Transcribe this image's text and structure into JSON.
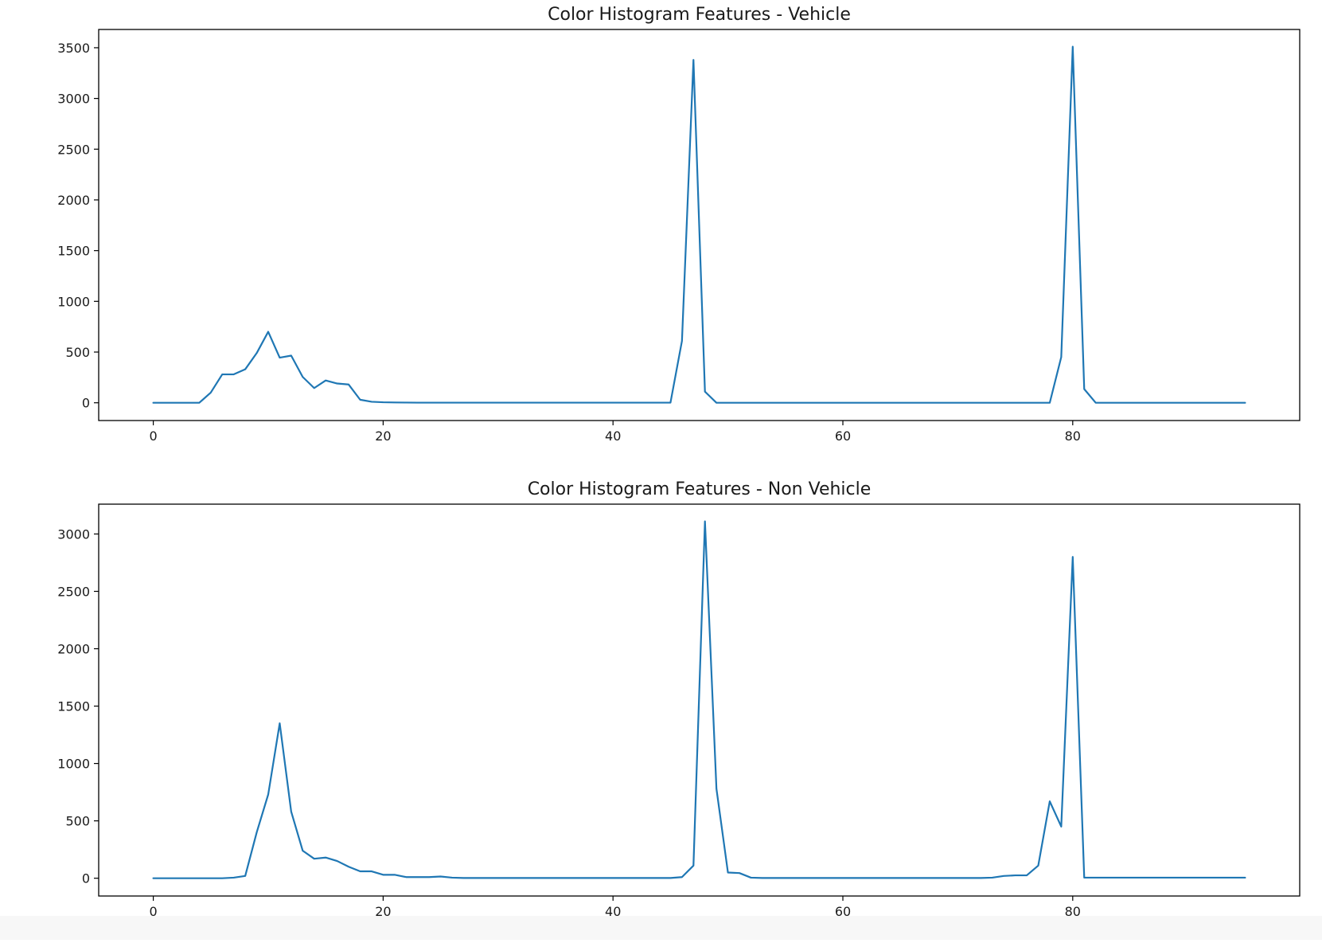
{
  "chart_data": [
    {
      "type": "line",
      "title": "Color Histogram Features - Vehicle",
      "xlabel": "",
      "ylabel": "",
      "xlim": [
        -4.75,
        99.75
      ],
      "ylim": [
        -175,
        3680
      ],
      "xticks": [
        0,
        20,
        40,
        60,
        80
      ],
      "yticks": [
        0,
        500,
        1000,
        1500,
        2000,
        2500,
        3000,
        3500
      ],
      "xtick_labels": [
        "0",
        "20",
        "40",
        "60",
        "80"
      ],
      "ytick_labels": [
        "0",
        "500",
        "1000",
        "1500",
        "2000",
        "2500",
        "3000",
        "3500"
      ],
      "grid": false,
      "line_color": "#1f77b4",
      "series": [
        {
          "x": [
            0,
            1,
            2,
            3,
            4,
            5,
            6,
            7,
            8,
            9,
            10,
            11,
            12,
            13,
            14,
            15,
            16,
            17,
            18,
            19,
            20,
            21,
            22,
            23,
            24,
            25,
            26,
            27,
            28,
            29,
            30,
            31,
            32,
            33,
            34,
            35,
            36,
            37,
            38,
            39,
            40,
            41,
            42,
            43,
            44,
            45,
            46,
            47,
            48,
            49,
            50,
            51,
            52,
            53,
            54,
            55,
            56,
            57,
            58,
            59,
            60,
            61,
            62,
            63,
            64,
            65,
            66,
            67,
            68,
            69,
            70,
            71,
            72,
            73,
            74,
            75,
            76,
            77,
            78,
            79,
            80,
            81,
            82,
            83,
            84,
            85,
            86,
            87,
            88,
            89,
            90,
            91,
            92,
            93,
            94,
            95
          ],
          "values": [
            0,
            0,
            0,
            0,
            0,
            100,
            280,
            280,
            330,
            490,
            700,
            445,
            465,
            255,
            145,
            220,
            190,
            180,
            30,
            10,
            5,
            3,
            2,
            1,
            1,
            1,
            1,
            1,
            1,
            1,
            1,
            1,
            1,
            1,
            1,
            1,
            1,
            1,
            1,
            1,
            1,
            1,
            1,
            1,
            1,
            1,
            610,
            3380,
            110,
            0,
            0,
            0,
            0,
            0,
            0,
            0,
            0,
            0,
            0,
            0,
            0,
            0,
            0,
            0,
            0,
            0,
            0,
            0,
            0,
            0,
            0,
            0,
            0,
            0,
            0,
            0,
            0,
            0,
            0,
            450,
            3510,
            135,
            0,
            0,
            0,
            0,
            0,
            0,
            0,
            0,
            0,
            0,
            0,
            0,
            0,
            0
          ]
        }
      ]
    },
    {
      "type": "line",
      "title": "Color Histogram Features - Non Vehicle",
      "xlabel": "",
      "ylabel": "",
      "xlim": [
        -4.75,
        99.75
      ],
      "ylim": [
        -155,
        3260
      ],
      "xticks": [
        0,
        20,
        40,
        60,
        80
      ],
      "yticks": [
        0,
        500,
        1000,
        1500,
        2000,
        2500,
        3000
      ],
      "xtick_labels": [
        "0",
        "20",
        "40",
        "60",
        "80"
      ],
      "ytick_labels": [
        "0",
        "500",
        "1000",
        "1500",
        "2000",
        "2500",
        "3000"
      ],
      "grid": false,
      "line_color": "#1f77b4",
      "series": [
        {
          "x": [
            0,
            1,
            2,
            3,
            4,
            5,
            6,
            7,
            8,
            9,
            10,
            11,
            12,
            13,
            14,
            15,
            16,
            17,
            18,
            19,
            20,
            21,
            22,
            23,
            24,
            25,
            26,
            27,
            28,
            29,
            30,
            31,
            32,
            33,
            34,
            35,
            36,
            37,
            38,
            39,
            40,
            41,
            42,
            43,
            44,
            45,
            46,
            47,
            48,
            49,
            50,
            51,
            52,
            53,
            54,
            55,
            56,
            57,
            58,
            59,
            60,
            61,
            62,
            63,
            64,
            65,
            66,
            67,
            68,
            69,
            70,
            71,
            72,
            73,
            74,
            75,
            76,
            77,
            78,
            79,
            80,
            81,
            82,
            83,
            84,
            85,
            86,
            87,
            88,
            89,
            90,
            91,
            92,
            93,
            94,
            95
          ],
          "values": [
            0,
            0,
            0,
            0,
            0,
            0,
            0,
            5,
            20,
            400,
            730,
            1350,
            580,
            240,
            170,
            180,
            150,
            100,
            60,
            60,
            30,
            30,
            10,
            10,
            10,
            15,
            5,
            2,
            2,
            2,
            2,
            2,
            2,
            2,
            2,
            2,
            2,
            2,
            2,
            2,
            2,
            2,
            2,
            2,
            2,
            2,
            10,
            110,
            3110,
            780,
            50,
            45,
            5,
            2,
            2,
            2,
            2,
            2,
            2,
            2,
            2,
            2,
            2,
            2,
            2,
            2,
            2,
            2,
            2,
            2,
            2,
            2,
            2,
            5,
            20,
            25,
            25,
            110,
            670,
            450,
            2800,
            5,
            5,
            5,
            5,
            5,
            5,
            5,
            5,
            5,
            5,
            5,
            5,
            5,
            5,
            5
          ]
        }
      ]
    }
  ]
}
